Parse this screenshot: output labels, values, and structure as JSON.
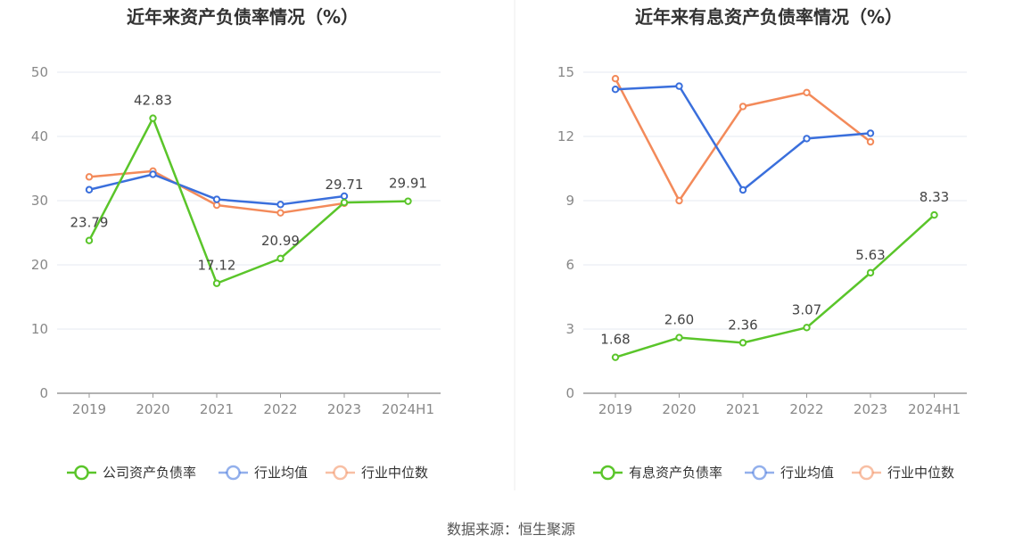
{
  "source": "数据来源：恒生聚源",
  "colors": {
    "company": "#5ac52a",
    "industry_avg": "#3a6fdc",
    "industry_median": "#f38a5a"
  },
  "chart_data": [
    {
      "type": "line",
      "title": "近年来资产负债率情况（%）",
      "categories": [
        "2019",
        "2020",
        "2021",
        "2022",
        "2023",
        "2024H1"
      ],
      "ylim": [
        0,
        50
      ],
      "yticks": [
        "0",
        "10",
        "20",
        "30",
        "40",
        "50"
      ],
      "grid": true,
      "legend_position": "bottom",
      "series": [
        {
          "name": "公司资产负债率",
          "values": [
            23.79,
            42.83,
            17.12,
            20.99,
            29.71,
            29.91
          ],
          "labels": [
            "23.79",
            "42.83",
            "17.12",
            "20.99",
            "29.71",
            "29.91"
          ]
        },
        {
          "name": "行业均值",
          "values": [
            31.7,
            34.1,
            30.2,
            29.4,
            30.7,
            null
          ]
        },
        {
          "name": "行业中位数",
          "values": [
            33.7,
            34.6,
            29.3,
            28.1,
            29.6,
            null
          ]
        }
      ]
    },
    {
      "type": "line",
      "title": "近年来有息资产负债率情况（%）",
      "categories": [
        "2019",
        "2020",
        "2021",
        "2022",
        "2023",
        "2024H1"
      ],
      "ylim": [
        0,
        15
      ],
      "yticks": [
        "0",
        "3",
        "6",
        "9",
        "12",
        "15"
      ],
      "grid": true,
      "legend_position": "bottom",
      "series": [
        {
          "name": "有息资产负债率",
          "values": [
            1.68,
            2.6,
            2.36,
            3.07,
            5.63,
            8.33
          ],
          "labels": [
            "1.68",
            "2.60",
            "2.36",
            "3.07",
            "5.63",
            "8.33"
          ]
        },
        {
          "name": "行业均值",
          "values": [
            14.2,
            14.35,
            9.5,
            11.9,
            12.15,
            null
          ]
        },
        {
          "name": "行业中位数",
          "values": [
            14.7,
            9.0,
            13.4,
            14.05,
            11.75,
            null
          ]
        }
      ]
    }
  ]
}
